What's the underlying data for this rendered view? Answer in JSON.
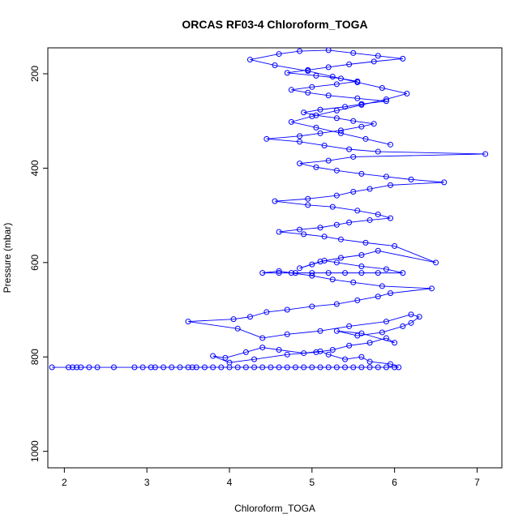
{
  "chart_data": {
    "type": "line",
    "title": "ORCAS RF03-4 Chloroform_TOGA",
    "xlabel": "Chloroform_TOGA",
    "ylabel": "Pressure (mbar)",
    "xlim": [
      1.8,
      7.3
    ],
    "ylim": [
      1035,
      145
    ],
    "y_reversed": true,
    "x_ticks": [
      2,
      3,
      4,
      5,
      6,
      7
    ],
    "y_ticks": [
      200,
      400,
      600,
      800,
      1000
    ],
    "grid": false,
    "marker": "open-circle",
    "color": "#0000ff",
    "series": [
      {
        "x": [
          1.85,
          2.05,
          2.1,
          2.15,
          2.2,
          2.3,
          2.4,
          2.6,
          2.85,
          2.95,
          3.05,
          3.1,
          3.2,
          3.3,
          3.4,
          3.5,
          3.55,
          3.6,
          3.7,
          3.8,
          3.9,
          4.0,
          4.1,
          4.2,
          4.3,
          4.4,
          4.5,
          4.6,
          4.7,
          4.8,
          4.9,
          5.0,
          5.1,
          5.2,
          5.3,
          5.4,
          5.5,
          5.6,
          5.7,
          5.8,
          5.9,
          6.0,
          6.05,
          5.95,
          5.7,
          5.6,
          5.4,
          5.2,
          5.1,
          4.9,
          4.6,
          4.4,
          4.2,
          3.95,
          3.8,
          4.0,
          4.3,
          4.7,
          5.05,
          5.25,
          5.45,
          5.7,
          5.9,
          6.0,
          5.6,
          5.3,
          5.55,
          5.85,
          6.1,
          6.2,
          6.3,
          6.2,
          5.9,
          5.45,
          5.1,
          4.7,
          4.4,
          4.1,
          3.5,
          4.05,
          4.25,
          4.45,
          4.7,
          5.0,
          5.3,
          5.55,
          5.8,
          5.95,
          6.45,
          5.85,
          5.5,
          5.25,
          5.0,
          4.75,
          4.6,
          4.4,
          4.6,
          4.8,
          5.0,
          5.2,
          5.4,
          5.6,
          5.8,
          6.1,
          5.9,
          5.6,
          5.3,
          5.15,
          5.0,
          4.85,
          5.1,
          5.35,
          5.6,
          5.8,
          6.5,
          6.0,
          5.65,
          5.35,
          5.15,
          4.9,
          4.6,
          4.85,
          5.1,
          5.3,
          5.45,
          5.7,
          5.95,
          5.8,
          5.55,
          5.25,
          4.95,
          4.55,
          4.95,
          5.3,
          5.5,
          5.7,
          5.95,
          6.6,
          6.2,
          5.9,
          5.6,
          5.3,
          5.05,
          4.85,
          5.2,
          5.5,
          7.1,
          5.8,
          5.45,
          5.15,
          4.85,
          4.45,
          4.85,
          5.1,
          5.35,
          5.6,
          5.75,
          5.5,
          5.3,
          5.05,
          4.9,
          5.1,
          5.4,
          5.6,
          5.9,
          5.55,
          5.2,
          4.95,
          4.75,
          5.0,
          5.3,
          5.55,
          5.35,
          5.05,
          4.7,
          4.95,
          5.2,
          5.45,
          5.75,
          6.1,
          5.8,
          5.5,
          5.2,
          4.85,
          4.6,
          4.25,
          4.55,
          4.95,
          5.25,
          5.55,
          5.85,
          6.15,
          5.9,
          5.6,
          5.3,
          5.0,
          4.75,
          5.05,
          5.35,
          5.65,
          5.95
        ],
        "y": [
          822,
          822,
          822,
          822,
          822,
          822,
          822,
          822,
          822,
          822,
          822,
          822,
          822,
          822,
          822,
          822,
          822,
          822,
          822,
          822,
          822,
          822,
          822,
          822,
          822,
          822,
          822,
          822,
          822,
          822,
          822,
          822,
          822,
          822,
          822,
          822,
          822,
          822,
          822,
          822,
          822,
          822,
          822,
          815,
          810,
          800,
          805,
          795,
          788,
          792,
          785,
          780,
          790,
          802,
          798,
          812,
          805,
          795,
          790,
          785,
          776,
          770,
          760,
          770,
          750,
          745,
          755,
          748,
          735,
          728,
          715,
          710,
          725,
          735,
          745,
          752,
          760,
          740,
          725,
          720,
          715,
          705,
          700,
          693,
          688,
          680,
          672,
          665,
          655,
          650,
          642,
          636,
          628,
          622,
          618,
          622,
          622,
          622,
          622,
          622,
          622,
          622,
          622,
          622,
          614,
          608,
          600,
          596,
          604,
          612,
          598,
          590,
          584,
          575,
          600,
          565,
          558,
          551,
          545,
          540,
          535,
          530,
          526,
          520,
          515,
          510,
          506,
          498,
          490,
          482,
          478,
          470,
          465,
          458,
          450,
          444,
          436,
          430,
          424,
          418,
          412,
          405,
          398,
          390,
          384,
          376,
          370,
          365,
          360,
          352,
          344,
          338,
          332,
          326,
          320,
          312,
          306,
          300,
          294,
          288,
          282,
          276,
          270,
          264,
          258,
          252,
          246,
          240,
          234,
          228,
          222,
          216,
          210,
          204,
          198,
          192,
          186,
          180,
          174,
          168,
          162,
          156,
          150,
          152,
          158,
          170,
          182,
          194,
          206,
          218,
          230,
          242,
          254,
          266,
          278,
          290,
          302,
          314,
          326,
          338,
          350
        ]
      }
    ]
  }
}
